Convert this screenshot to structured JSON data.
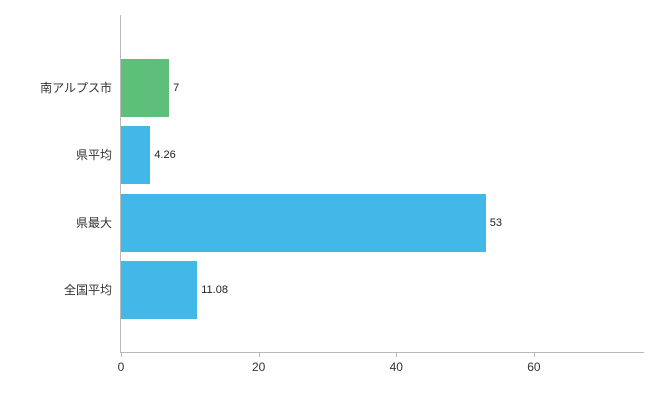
{
  "chart_data": {
    "type": "bar",
    "orientation": "horizontal",
    "title": "",
    "xlabel": "",
    "ylabel": "",
    "categories": [
      "南アルプス市",
      "県平均",
      "県最大",
      "全国平均"
    ],
    "values": [
      7,
      4.26,
      53,
      11.08
    ],
    "value_labels": [
      "7",
      "4.26",
      "53",
      "11.08"
    ],
    "bar_colors": [
      "#5dbf7a",
      "#41b8e8",
      "#41b8e8",
      "#41b8e8"
    ],
    "xlim": [
      0,
      76
    ],
    "xticks": [
      0,
      20,
      40,
      60
    ],
    "grid": false,
    "legend": false
  },
  "colors": {
    "axis": "#b8b8b8",
    "tick_text": "#333333",
    "label_text": "#333333",
    "value_text": "#222222"
  }
}
